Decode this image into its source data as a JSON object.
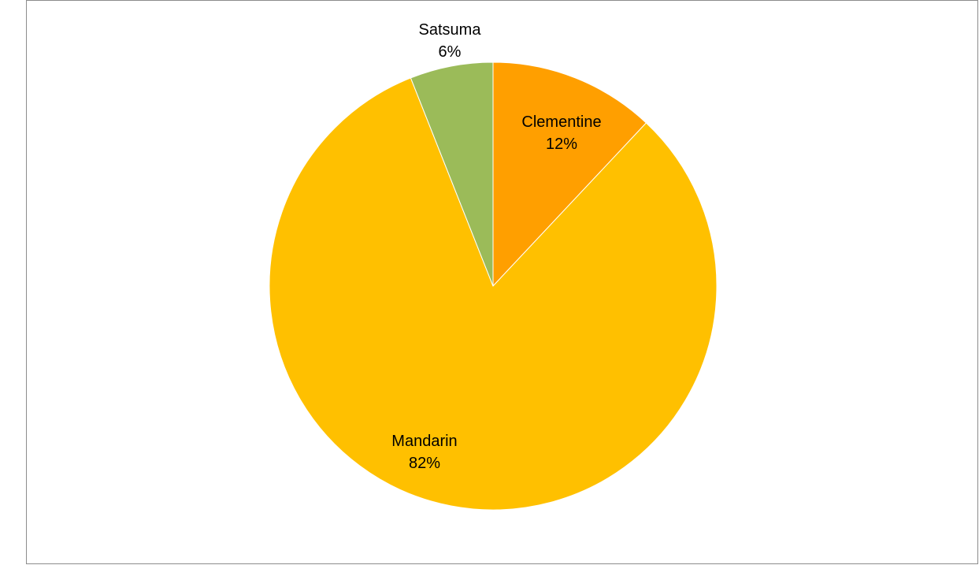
{
  "chart_data": {
    "type": "pie",
    "title": "",
    "slices": [
      {
        "label": "Clementine",
        "value": 12,
        "percent_label": "12%",
        "color": "#FF9F00"
      },
      {
        "label": "Mandarin",
        "value": 82,
        "percent_label": "82%",
        "color": "#FFC000"
      },
      {
        "label": "Satsuma",
        "value": 6,
        "percent_label": "6%",
        "color": "#9BBB59"
      }
    ],
    "start_angle_deg": 0,
    "direction": "clockwise",
    "legend": "none"
  }
}
